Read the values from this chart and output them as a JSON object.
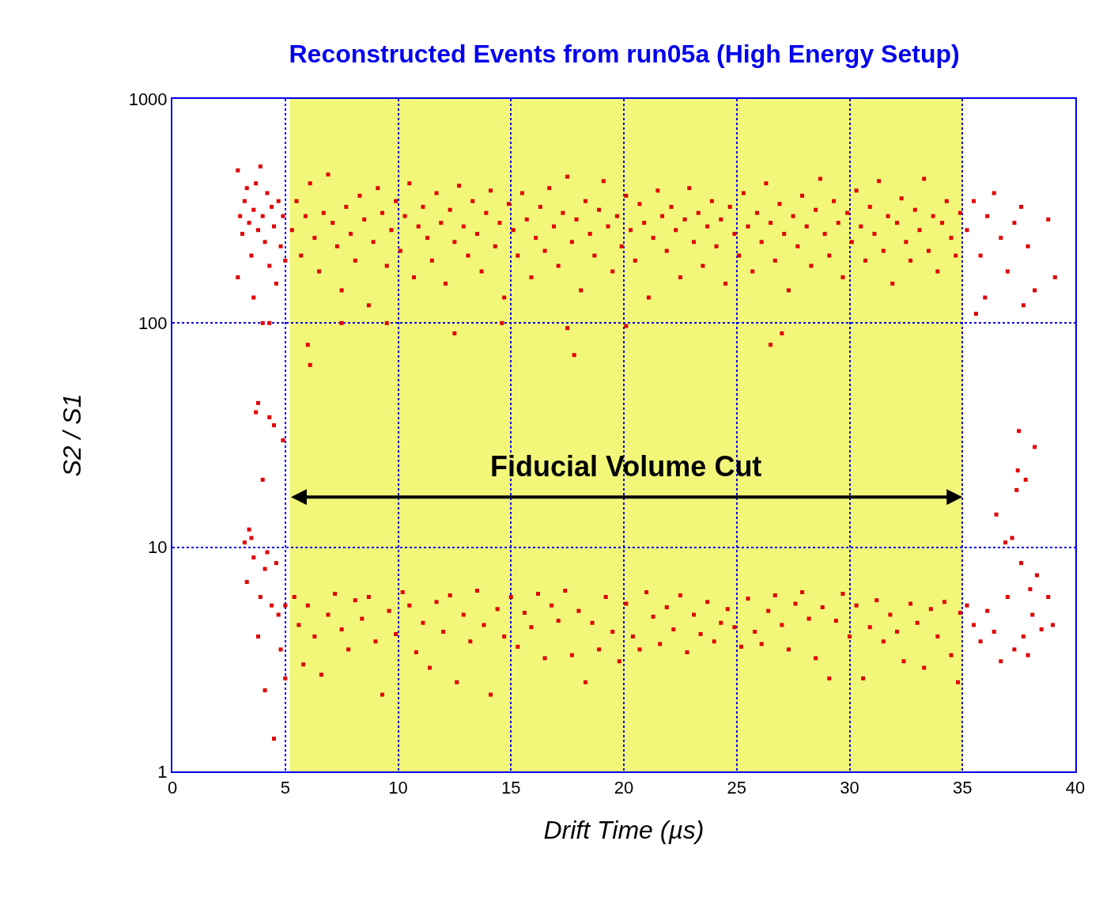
{
  "chart_data": {
    "type": "scatter",
    "title": "Reconstructed Events from run05a (High Energy Setup)",
    "xlabel": "Drift Time (µs)",
    "ylabel": "S2 / S1",
    "xlim": [
      0,
      40
    ],
    "xticks": [
      0,
      5,
      10,
      15,
      20,
      25,
      30,
      35,
      40
    ],
    "ylim": [
      1,
      1000
    ],
    "yticks": [
      1,
      10,
      100,
      1000
    ],
    "log": "y",
    "grid": true,
    "marker": "square",
    "bands": [
      {
        "axis": "x",
        "from": 5.2,
        "to": 35,
        "label": "Fiducial Volume Cut",
        "color": "#f2f77a"
      }
    ],
    "series": [
      {
        "color": "#e00000",
        "x": [
          2.9,
          3.0,
          3.1,
          3.2,
          3.3,
          3.4,
          3.5,
          3.6,
          3.7,
          3.8,
          3.9,
          4.0,
          4.1,
          4.2,
          4.3,
          4.4,
          4.5,
          4.6,
          4.7,
          4.8,
          4.9,
          5.0,
          4.3,
          3.6,
          2.9,
          5.3,
          5.5,
          5.7,
          5.9,
          6.1,
          6.3,
          6.5,
          6.7,
          6.9,
          7.1,
          7.3,
          7.5,
          7.7,
          7.9,
          8.1,
          8.3,
          8.5,
          8.7,
          8.9,
          9.1,
          9.3,
          9.5,
          9.7,
          9.9,
          10.1,
          10.3,
          10.5,
          10.7,
          10.9,
          11.1,
          11.3,
          11.5,
          11.7,
          11.9,
          12.1,
          12.3,
          12.5,
          12.7,
          12.9,
          13.1,
          13.3,
          13.5,
          13.7,
          13.9,
          14.1,
          14.3,
          14.5,
          14.7,
          14.9,
          15.1,
          15.3,
          15.5,
          15.7,
          15.9,
          16.1,
          16.3,
          16.5,
          16.7,
          16.9,
          17.1,
          17.3,
          17.5,
          17.7,
          17.9,
          18.1,
          18.3,
          18.5,
          18.7,
          18.9,
          19.1,
          19.3,
          19.5,
          19.7,
          19.9,
          20.1,
          20.3,
          20.5,
          20.7,
          20.9,
          21.1,
          21.3,
          21.5,
          21.7,
          21.9,
          22.1,
          22.3,
          22.5,
          22.7,
          22.9,
          23.1,
          23.3,
          23.5,
          23.7,
          23.9,
          24.1,
          24.3,
          24.5,
          24.7,
          24.9,
          25.1,
          25.3,
          25.5,
          25.7,
          25.9,
          26.1,
          26.3,
          26.5,
          26.7,
          26.9,
          27.1,
          27.3,
          27.5,
          27.7,
          27.9,
          28.1,
          28.3,
          28.5,
          28.7,
          28.9,
          29.1,
          29.3,
          29.5,
          29.7,
          29.9,
          30.1,
          30.3,
          30.5,
          30.7,
          30.9,
          31.1,
          31.3,
          31.5,
          31.7,
          31.9,
          32.1,
          32.3,
          32.5,
          32.7,
          32.9,
          33.1,
          33.3,
          33.5,
          33.7,
          33.9,
          34.1,
          34.3,
          34.5,
          34.7,
          34.9,
          35.2,
          35.5,
          35.8,
          36.1,
          36.4,
          36.7,
          37.0,
          37.3,
          37.6,
          37.9,
          38.2,
          38.8,
          39.1,
          35.6,
          36.0,
          37.7,
          6.1,
          6.0,
          7.5,
          9.5,
          12.5,
          14.6,
          17.5,
          17.8,
          20.1,
          26.5,
          27.0,
          4.0
        ],
        "values": [
          480,
          300,
          250,
          350,
          400,
          280,
          200,
          320,
          420,
          260,
          500,
          300,
          230,
          380,
          180,
          330,
          270,
          150,
          350,
          220,
          300,
          190,
          100,
          130,
          160,
          260,
          350,
          200,
          300,
          420,
          240,
          170,
          310,
          460,
          280,
          220,
          140,
          330,
          250,
          190,
          370,
          290,
          120,
          230,
          400,
          310,
          180,
          260,
          350,
          210,
          300,
          420,
          160,
          270,
          330,
          240,
          190,
          380,
          280,
          150,
          320,
          230,
          410,
          270,
          200,
          350,
          250,
          170,
          310,
          390,
          220,
          280,
          130,
          340,
          260,
          200,
          380,
          290,
          160,
          240,
          330,
          210,
          400,
          270,
          180,
          310,
          450,
          230,
          290,
          140,
          350,
          250,
          200,
          320,
          430,
          270,
          170,
          300,
          220,
          370,
          260,
          190,
          340,
          280,
          130,
          240,
          390,
          300,
          210,
          330,
          260,
          160,
          290,
          400,
          230,
          310,
          180,
          270,
          350,
          220,
          290,
          150,
          330,
          250,
          200,
          380,
          270,
          170,
          310,
          230,
          420,
          280,
          190,
          340,
          250,
          140,
          300,
          220,
          370,
          270,
          180,
          320,
          440,
          250,
          200,
          350,
          280,
          160,
          310,
          230,
          390,
          270,
          190,
          330,
          250,
          430,
          210,
          300,
          150,
          280,
          360,
          230,
          190,
          320,
          260,
          440,
          210,
          300,
          170,
          280,
          350,
          240,
          200,
          310,
          260,
          350,
          200,
          300,
          380,
          240,
          170,
          280,
          330,
          220,
          140,
          290,
          160,
          110,
          130,
          120,
          65,
          80,
          100,
          100,
          90,
          100,
          95,
          72,
          97,
          80,
          90,
          100
        ]
      },
      {
        "color": "#e00000",
        "x": [
          3.2,
          3.3,
          3.4,
          3.5,
          3.6,
          3.7,
          3.8,
          3.9,
          4.0,
          4.1,
          4.2,
          4.3,
          4.4,
          4.5,
          4.6,
          4.7,
          4.8,
          4.9,
          5.0,
          4.1,
          4.5,
          3.8,
          5.0,
          5.4,
          5.6,
          5.8,
          6.0,
          6.3,
          6.6,
          6.9,
          7.2,
          7.5,
          7.8,
          8.1,
          8.4,
          8.7,
          9.0,
          9.3,
          9.6,
          9.9,
          10.2,
          10.5,
          10.8,
          11.1,
          11.4,
          11.7,
          12.0,
          12.3,
          12.6,
          12.9,
          13.2,
          13.5,
          13.8,
          14.1,
          14.4,
          14.7,
          15.0,
          15.3,
          15.6,
          15.9,
          16.2,
          16.5,
          16.8,
          17.1,
          17.4,
          17.7,
          18.0,
          18.3,
          18.6,
          18.9,
          19.2,
          19.5,
          19.8,
          20.1,
          20.4,
          20.7,
          21.0,
          21.3,
          21.6,
          21.9,
          22.2,
          22.5,
          22.8,
          23.1,
          23.4,
          23.7,
          24.0,
          24.3,
          24.6,
          24.9,
          25.2,
          25.5,
          25.8,
          26.1,
          26.4,
          26.7,
          27.0,
          27.3,
          27.6,
          27.9,
          28.2,
          28.5,
          28.8,
          29.1,
          29.4,
          29.7,
          30.0,
          30.3,
          30.6,
          30.9,
          31.2,
          31.5,
          31.8,
          32.1,
          32.4,
          32.7,
          33.0,
          33.3,
          33.6,
          33.9,
          34.2,
          34.5,
          34.8,
          34.9,
          35.2,
          35.5,
          35.8,
          36.1,
          36.4,
          36.7,
          36.9,
          37.0,
          37.2,
          37.3,
          37.4,
          37.5,
          37.6,
          37.7,
          37.8,
          37.9,
          38.0,
          38.1,
          38.2,
          38.3,
          38.5,
          38.8,
          39.0,
          36.5,
          37.45
        ],
        "values": [
          10.5,
          7,
          12,
          11,
          9,
          40,
          44,
          6,
          20,
          8,
          9.5,
          38,
          5.5,
          35,
          8.5,
          5,
          3.5,
          30,
          5.5,
          2.3,
          1.4,
          4,
          2.6,
          6,
          4.5,
          3,
          5.5,
          4,
          2.7,
          5,
          6.2,
          4.3,
          3.5,
          5.8,
          4.8,
          6,
          3.8,
          2.2,
          5.2,
          4.1,
          6.3,
          5.5,
          3.4,
          4.6,
          2.9,
          5.7,
          4.2,
          6.1,
          2.5,
          5,
          3.8,
          6.4,
          4.5,
          2.2,
          5.3,
          4,
          6,
          3.6,
          5.1,
          4.4,
          6.2,
          3.2,
          5.5,
          4.7,
          6.4,
          3.3,
          5.2,
          2.5,
          4.6,
          3.5,
          6,
          4.2,
          3.1,
          5.6,
          4,
          3.5,
          6.3,
          4.9,
          3.7,
          5.4,
          4.3,
          6.1,
          3.4,
          5,
          4.1,
          5.7,
          3.8,
          4.6,
          5.3,
          4.4,
          3.6,
          5.9,
          4.2,
          3.7,
          5.2,
          6.1,
          4.5,
          3.5,
          5.6,
          6.3,
          4.8,
          3.2,
          5.4,
          2.6,
          4.7,
          6.2,
          4,
          5.5,
          2.6,
          4.4,
          5.8,
          3.8,
          5,
          4.2,
          3.1,
          5.6,
          4.6,
          2.9,
          5.3,
          4,
          5.7,
          3.3,
          2.5,
          5.1,
          5.5,
          4.5,
          3.8,
          5.2,
          4.2,
          3.1,
          10.5,
          6,
          11,
          3.5,
          18,
          33,
          8.5,
          4,
          20,
          3.3,
          6.5,
          5,
          28,
          7.5,
          4.3,
          6,
          4.5,
          14,
          22
        ]
      }
    ]
  }
}
